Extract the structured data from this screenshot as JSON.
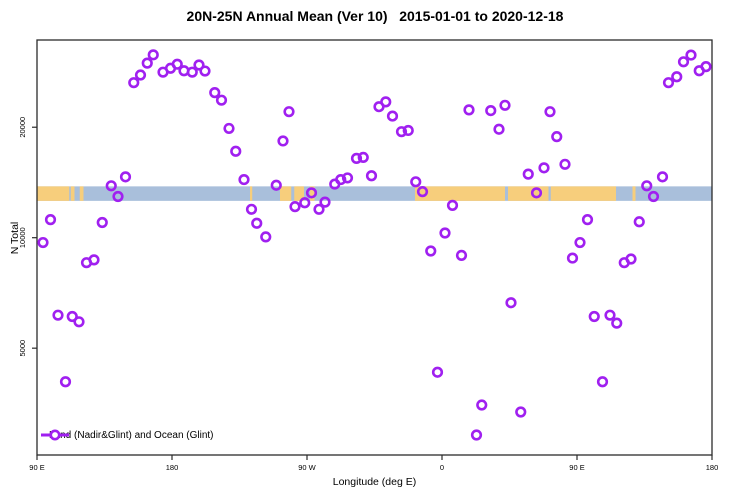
{
  "title": "20N-25N Annual Mean (Ver 10)   2015-01-01 to 2020-12-18",
  "chart_data": {
    "type": "scatter",
    "title": "20N-25N Annual Mean (Ver 10)   2015-01-01 to 2020-12-18",
    "xlabel": "Longitude (deg E)",
    "ylabel": "N Total",
    "x_axis": {
      "note": "longitude axis starts at 90E and runs eastward 450 degrees (90E,180,90W,0,90E,180); deg = degrees east of 90E",
      "range_deg": [
        0,
        450
      ],
      "ticks_deg": [
        0,
        90,
        180,
        270,
        360,
        450
      ],
      "tick_labels": [
        "90 E",
        "180",
        "90 W",
        "0",
        "90 E",
        "180"
      ]
    },
    "y_axis": {
      "scale": "log10",
      "ticks": [
        5000,
        10000,
        20000
      ],
      "tick_labels": [
        "5000",
        "10000",
        "20000"
      ],
      "range": [
        2550,
        34700
      ]
    },
    "grid": "off",
    "legend": {
      "label": "Land (Nadir&Glint) and Ocean (Glint)",
      "position": "bottom-left"
    },
    "colors": {
      "points": "#A020F0",
      "land_strip": "#F7CE7C",
      "ocean_strip": "#A9BFDB",
      "axis": "#2b2b2b"
    },
    "surface_strip": {
      "n_range": [
        12600,
        13800
      ],
      "ocean_fills_full_width": true,
      "land_segments_deg": [
        [
          0,
          21.5
        ],
        [
          22.5,
          25
        ],
        [
          28.5,
          31
        ],
        [
          142,
          143.5
        ],
        [
          162,
          169.5
        ],
        [
          171.5,
          178
        ],
        [
          182,
          185
        ],
        [
          252,
          312
        ],
        [
          314,
          341
        ],
        [
          342.5,
          386
        ],
        [
          397,
          399
        ]
      ]
    },
    "points_format": [
      "deg_east_of_90E",
      "n_total"
    ],
    "points": [
      [
        77.5,
        31500
      ],
      [
        73.5,
        29900
      ],
      [
        69,
        27750
      ],
      [
        64.5,
        26450
      ],
      [
        84,
        28250
      ],
      [
        89,
        28950
      ],
      [
        93.5,
        29700
      ],
      [
        98,
        28500
      ],
      [
        103.5,
        28250
      ],
      [
        108,
        29550
      ],
      [
        112,
        28450
      ],
      [
        118.5,
        24850
      ],
      [
        123,
        23700
      ],
      [
        128,
        19850
      ],
      [
        132.5,
        17200
      ],
      [
        138,
        14400
      ],
      [
        143,
        11950
      ],
      [
        146.5,
        10950
      ],
      [
        59,
        14650
      ],
      [
        49.5,
        13850
      ],
      [
        54,
        12950
      ],
      [
        9,
        11200
      ],
      [
        43.5,
        11000
      ],
      [
        4,
        9700
      ],
      [
        33,
        8550
      ],
      [
        38,
        8700
      ],
      [
        14,
        6150
      ],
      [
        23.5,
        6100
      ],
      [
        28,
        5900
      ],
      [
        19,
        4050
      ],
      [
        168,
        22050
      ],
      [
        164,
        18350
      ],
      [
        228,
        22750
      ],
      [
        232.5,
        23450
      ],
      [
        237,
        21450
      ],
      [
        243,
        19450
      ],
      [
        247.5,
        19600
      ],
      [
        288,
        22300
      ],
      [
        213,
        16450
      ],
      [
        217.5,
        16550
      ],
      [
        223,
        14750
      ],
      [
        207,
        14550
      ],
      [
        202.5,
        14400
      ],
      [
        198.5,
        14000
      ],
      [
        159.5,
        13900
      ],
      [
        183,
        13250
      ],
      [
        178.5,
        12450
      ],
      [
        172,
        12150
      ],
      [
        188,
        11950
      ],
      [
        192,
        12500
      ],
      [
        252.5,
        14200
      ],
      [
        257,
        13350
      ],
      [
        277,
        12250
      ],
      [
        272,
        10300
      ],
      [
        152.5,
        10050
      ],
      [
        262.5,
        9200
      ],
      [
        283,
        8950
      ],
      [
        267,
        4300
      ],
      [
        296.5,
        3500
      ],
      [
        293,
        2900
      ],
      [
        302.5,
        22200
      ],
      [
        312,
        22950
      ],
      [
        308,
        19750
      ],
      [
        342,
        22050
      ],
      [
        346.5,
        18850
      ],
      [
        352,
        15850
      ],
      [
        338,
        15500
      ],
      [
        327.5,
        14900
      ],
      [
        333,
        13250
      ],
      [
        417,
        14650
      ],
      [
        406.5,
        13850
      ],
      [
        411,
        12950
      ],
      [
        421,
        26450
      ],
      [
        426.5,
        27450
      ],
      [
        431,
        30150
      ],
      [
        436,
        31450
      ],
      [
        441.5,
        28500
      ],
      [
        446,
        29250
      ],
      [
        367,
        11200
      ],
      [
        362,
        9700
      ],
      [
        401.5,
        11050
      ],
      [
        357,
        8800
      ],
      [
        391.5,
        8550
      ],
      [
        396,
        8750
      ],
      [
        316,
        6650
      ],
      [
        371.5,
        6100
      ],
      [
        382,
        6150
      ],
      [
        386.5,
        5850
      ],
      [
        377,
        4050
      ],
      [
        322.5,
        3350
      ]
    ]
  }
}
